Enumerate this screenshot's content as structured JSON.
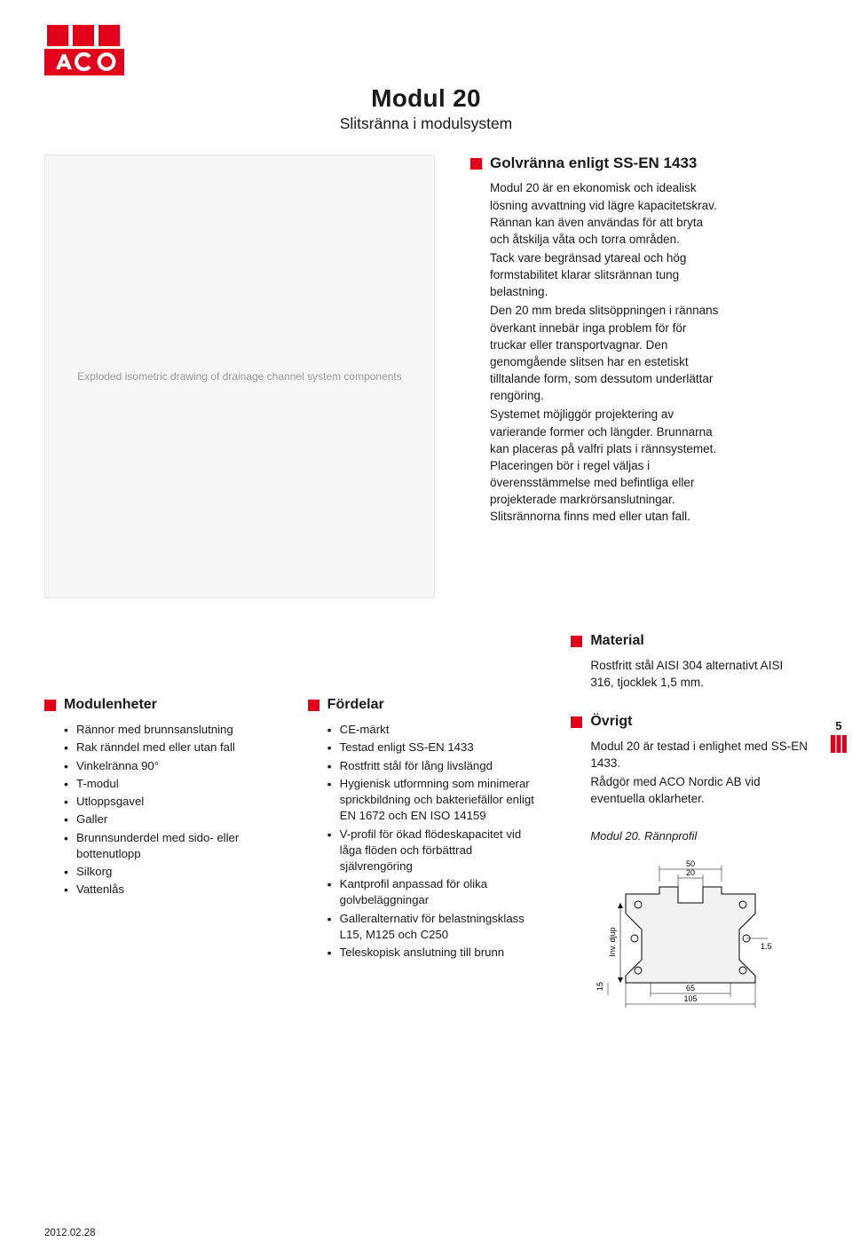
{
  "brand": {
    "logo_text": "ACO",
    "logo_bg": "#e2001a",
    "logo_fg": "#ffffff"
  },
  "title": {
    "main": "Modul 20",
    "sub": "Slitsränna i modulsystem"
  },
  "intro": {
    "heading": "Golvränna enligt SS-EN 1433",
    "body": "Modul 20 är en ekonomisk och idealisk lösning avvattning vid lägre kapacitetskrav. Rännan kan även användas för att bryta och åtskilja våta och torra områden.\nTack vare begränsad ytareal och hög formstabilitet klarar slitsrännan tung belastning.\nDen 20 mm breda slitsöppningen i rännans överkant innebär inga problem för för truckar eller transportvagnar. Den genomgående slitsen har en estetiskt tilltalande form, som dessutom underlättar rengöring.\nSystemet möjliggör projektering av varierande former och längder. Brunnarna kan placeras på valfri plats i rännsystemet. Placeringen bör i regel väljas i överensstämmelse med befintliga eller projekterade markrörsanslutningar. Slitsrännorna finns med eller utan fall."
  },
  "modulenheter": {
    "heading": "Modulenheter",
    "items": [
      "Rännor med brunnsanslutning",
      "Rak ränndel med eller utan fall",
      "Vinkelränna 90°",
      "T-modul",
      "Utloppsgavel",
      "Galler",
      "Brunnsunderdel med sido- eller bottenutlopp",
      "Silkorg",
      "Vattenlås"
    ]
  },
  "fordelar": {
    "heading": "Fördelar",
    "items": [
      "CE-märkt",
      "Testad enligt SS-EN 1433",
      "Rostfritt stål för lång livslängd",
      "Hygienisk utformning som minimerar sprickbildning och bakteriefällor enligt EN 1672 och EN ISO 14159",
      "V-profil för ökad flödeskapacitet vid låga flöden och förbättrad självrengöring",
      "Kantprofil anpassad för olika golvbeläggningar",
      "Galleralternativ för belastningsklass L15, M125 och C250",
      "Teleskopisk anslutning till brunn"
    ]
  },
  "material": {
    "heading": "Material",
    "body": "Rostfritt stål AISI 304 alternativt AISI 316, tjocklek 1,5 mm."
  },
  "ovrigt": {
    "heading": "Övrigt",
    "body1": "Modul 20 är testad i enlighet med SS-EN 1433.",
    "body2": "Rådgör med ACO Nordic AB vid eventuella oklarheter."
  },
  "profile": {
    "caption": "Modul 20. Rännprofil",
    "dims": {
      "top_outer": "50",
      "top_inner": "20",
      "bottom_inner": "65",
      "bottom_outer": "105",
      "left_offset": "15",
      "thickness": "1.5",
      "depth_label": "Inv. djup"
    },
    "stroke": "#000000",
    "fill": "#f2f2f2",
    "dim_color": "#000000",
    "fontsize": 9
  },
  "page_marker": {
    "number": "5",
    "color": "#e2001a"
  },
  "footer": {
    "date": "2012.02.28"
  },
  "hero_placeholder": "Exploded isometric drawing of drainage channel system components"
}
